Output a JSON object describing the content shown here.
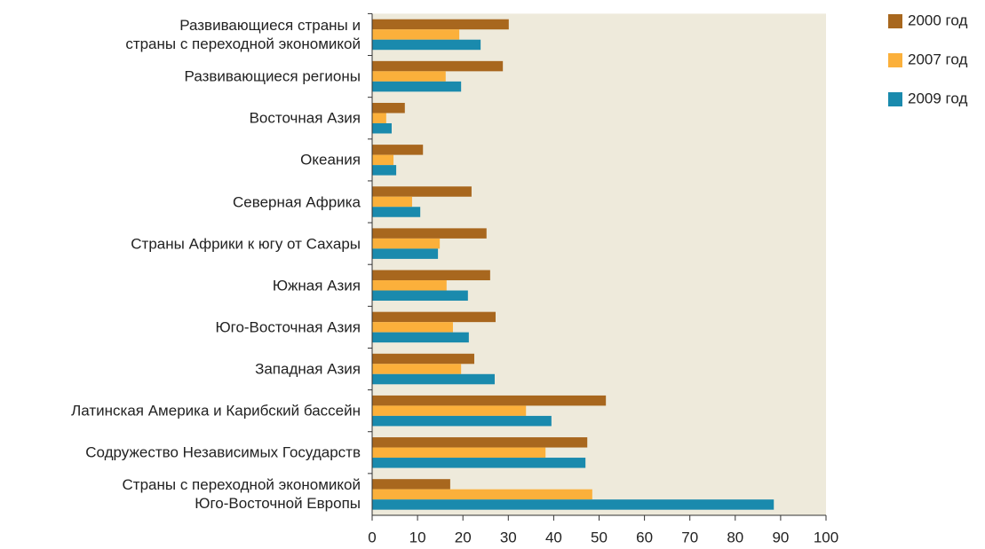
{
  "chart_data": {
    "type": "hbar",
    "categories": [
      "Развивающиеся страны и\nстраны с переходной экономикой",
      "Развивающиеся регионы",
      "Восточная Азия",
      "Океания",
      "Северная Африка",
      "Страны Африки к югу от Сахары",
      "Южная Азия",
      "Юго-Восточная Азия",
      "Западная Азия",
      "Латинская Америка и Карибский бассейн",
      "Содружество Независимых Государств",
      "Страны с переходной экономикой\nЮго-Восточной Европы"
    ],
    "series": [
      {
        "name": "2000 год",
        "color": "#a8671e",
        "values": [
          30.1,
          28.8,
          7.2,
          11.2,
          21.9,
          25.2,
          26,
          27.2,
          22.5,
          51.5,
          47.4,
          17.2
        ]
      },
      {
        "name": "2007 год",
        "color": "#fbb03b",
        "values": [
          19.2,
          16.2,
          3.1,
          4.7,
          8.8,
          14.9,
          16.4,
          17.8,
          19.6,
          33.9,
          38.2,
          48.5
        ]
      },
      {
        "name": "2009 год",
        "color": "#1a8aad",
        "values": [
          23.9,
          19.6,
          4.3,
          5.3,
          10.6,
          14.5,
          21.1,
          21.3,
          27,
          39.5,
          47,
          88.5
        ]
      }
    ],
    "xlim": [
      0,
      100
    ],
    "xticks": [
      0,
      10,
      20,
      30,
      40,
      50,
      60,
      70,
      80,
      90,
      100
    ],
    "legend": "right"
  }
}
